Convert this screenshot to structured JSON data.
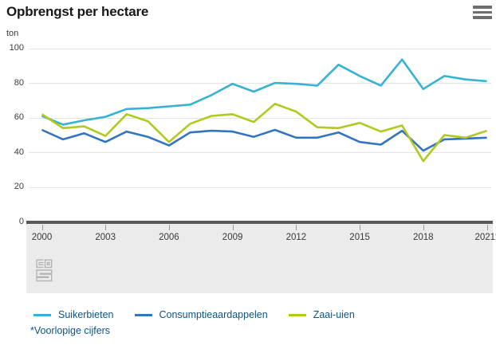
{
  "header": {
    "title": "Opbrengst per hectare",
    "unit": "ton"
  },
  "colors": {
    "suikerbieten": "#36b2d3",
    "consumptieaardappelen": "#3374c1",
    "zaai_uien": "#b1c91d",
    "grid": "#e4e4e4",
    "axis": "#58585a",
    "band": "#ebebeb",
    "legend_text": "#0f5480",
    "footnote_text": "#0f5480",
    "tick_text": "#3a3a3a",
    "logo": "#b5b5b5"
  },
  "chart_data": {
    "type": "line",
    "title": "Opbrengst per hectare",
    "ylabel": "ton",
    "ylim": [
      0,
      100
    ],
    "yticks": [
      0,
      20,
      40,
      60,
      80,
      100
    ],
    "grid": "horizontal",
    "legend_position": "bottom",
    "x": [
      2000,
      2001,
      2002,
      2003,
      2004,
      2005,
      2006,
      2007,
      2008,
      2009,
      2010,
      2011,
      2012,
      2013,
      2014,
      2015,
      2016,
      2017,
      2018,
      2019,
      2020,
      2021
    ],
    "xticks": [
      2000,
      2003,
      2006,
      2009,
      2012,
      2015,
      2018,
      2021
    ],
    "xtick_labels": [
      "2000",
      "2003",
      "2006",
      "2009",
      "2012",
      "2015",
      "2018",
      "2021*"
    ],
    "series": [
      {
        "name": "Suikerbieten",
        "color": "#36b2d3",
        "values": [
          61,
          56,
          58.5,
          60.5,
          65,
          65.5,
          66.5,
          67.5,
          73,
          79.5,
          75,
          80,
          79.5,
          78.5,
          90.5,
          84,
          78.5,
          93.5,
          76.5,
          84,
          82,
          81
        ]
      },
      {
        "name": "Consumptieaardappelen",
        "color": "#3374c1",
        "values": [
          53,
          47.5,
          51,
          46,
          52,
          49,
          44,
          51.5,
          52.5,
          52,
          49,
          53,
          48.5,
          48.5,
          51.5,
          46,
          44.5,
          52.5,
          41,
          47.5,
          48,
          48.5
        ]
      },
      {
        "name": "Zaai-uien",
        "color": "#b1c91d",
        "values": [
          62,
          54,
          55,
          49.5,
          62,
          58,
          46,
          56.5,
          61,
          62,
          57.5,
          68,
          63.5,
          54.5,
          54,
          57,
          52,
          55.5,
          35,
          50,
          48.5,
          52.5
        ]
      }
    ]
  },
  "footnote": "*Voorlopige cijfers"
}
